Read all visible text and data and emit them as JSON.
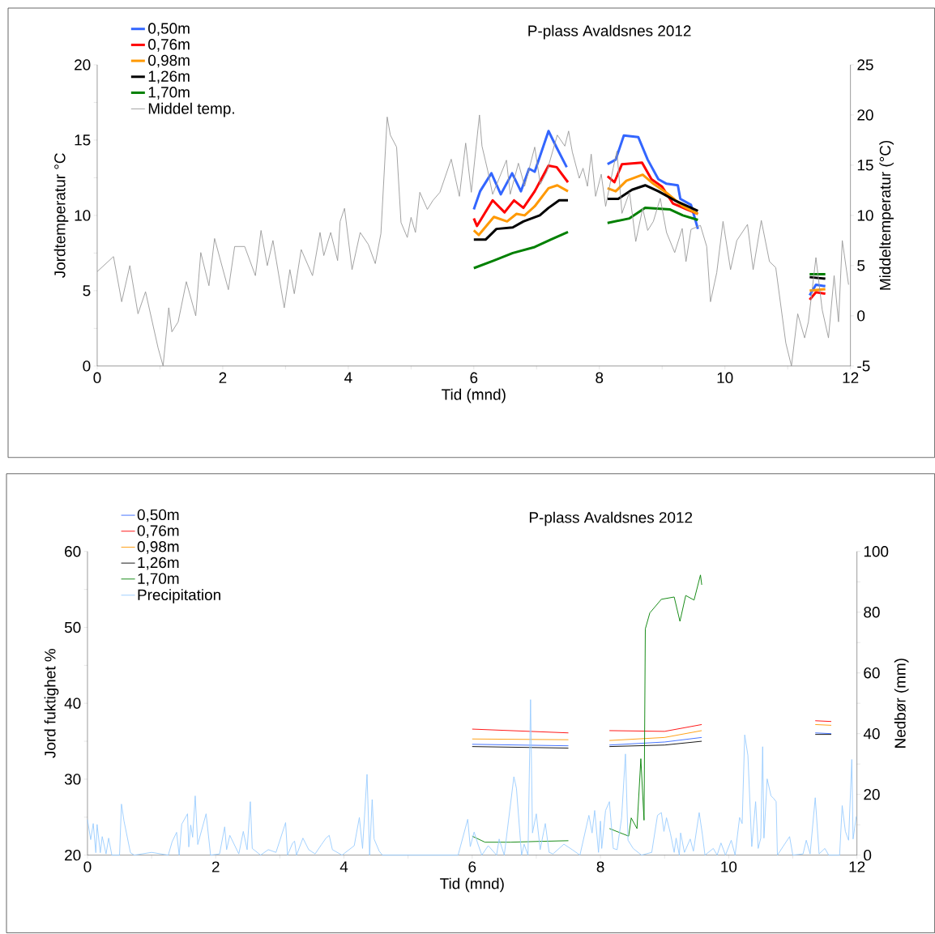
{
  "chart_data": [
    {
      "type": "line",
      "title": "P-plass Avaldsnes 2012",
      "xlabel": "Tid (mnd)",
      "ylabel": "Jordtemperatur °C",
      "y2label": "Middeltemperatur (°C)",
      "xlim": [
        0,
        12
      ],
      "xticks": [
        0,
        {
          "value": 1,
          "label": null
        },
        2,
        {
          "value": 3,
          "label": null
        },
        4,
        {
          "value": 5,
          "label": null
        },
        6,
        {
          "value": 7,
          "label": null
        },
        8,
        {
          "value": 9,
          "label": null
        },
        10,
        {
          "value": 11,
          "label": null
        },
        12
      ],
      "ylim": [
        0,
        20
      ],
      "yticks": [
        0,
        {
          "value": 2.5,
          "label": null
        },
        5,
        {
          "value": 7.5,
          "label": null
        },
        10,
        {
          "value": 12.5,
          "label": null
        },
        15,
        {
          "value": 17.5,
          "label": null
        },
        20
      ],
      "y2lim": [
        -5,
        25
      ],
      "y2ticks": [
        -5,
        0,
        5,
        10,
        15,
        20,
        25
      ],
      "legend": "top left",
      "grid": false,
      "line_style": "solid",
      "series": [
        {
          "name": "0,50m",
          "color": "#3366ff",
          "x": [
            6.0,
            6.1,
            6.28,
            6.43,
            6.61,
            6.75,
            6.88,
            6.97,
            7.19,
            7.32,
            7.48,
            7.8,
            8.13,
            8.26,
            8.39,
            8.62,
            8.77,
            8.94,
            9.07,
            9.25,
            9.29,
            9.46,
            9.57,
            10.5,
            11.35,
            11.45,
            11.6
          ],
          "values": [
            10.4,
            11.6,
            12.8,
            11.4,
            12.8,
            11.6,
            13.1,
            12.9,
            15.6,
            14.5,
            13.2,
            null,
            13.4,
            13.7,
            15.3,
            15.2,
            13.7,
            12.4,
            12.1,
            12.0,
            11.1,
            10.7,
            9.1,
            null,
            4.7,
            5.4,
            5.3
          ]
        },
        {
          "name": "0,76m",
          "color": "#ff0000",
          "x": [
            6.0,
            6.05,
            6.3,
            6.49,
            6.64,
            6.79,
            6.97,
            7.19,
            7.32,
            7.5,
            7.8,
            8.13,
            8.24,
            8.36,
            8.68,
            8.83,
            9.0,
            9.17,
            9.39,
            9.57,
            10.5,
            11.35,
            11.45,
            11.6
          ],
          "values": [
            9.8,
            9.3,
            11.0,
            10.2,
            11.0,
            10.5,
            11.6,
            13.3,
            13.2,
            12.2,
            null,
            12.6,
            12.2,
            13.4,
            13.5,
            12.4,
            11.9,
            10.8,
            10.4,
            10.1,
            null,
            4.4,
            4.9,
            4.8
          ]
        },
        {
          "name": "0,98m",
          "color": "#ff9900",
          "x": [
            6.0,
            6.08,
            6.32,
            6.53,
            6.68,
            6.81,
            6.97,
            7.19,
            7.33,
            7.5,
            7.8,
            8.13,
            8.26,
            8.43,
            8.69,
            8.86,
            9.07,
            9.33,
            9.57,
            10.5,
            11.35,
            11.6
          ],
          "values": [
            9.0,
            8.7,
            9.9,
            9.6,
            10.1,
            10.0,
            10.6,
            11.8,
            12.0,
            11.6,
            null,
            11.8,
            11.6,
            12.3,
            12.7,
            12.1,
            11.5,
            10.6,
            10.1,
            null,
            5.0,
            5.1
          ]
        },
        {
          "name": "1,26m",
          "color": "#000000",
          "x": [
            6.0,
            6.19,
            6.36,
            6.62,
            6.79,
            7.05,
            7.19,
            7.36,
            7.5,
            7.8,
            8.13,
            8.3,
            8.52,
            8.73,
            8.94,
            9.2,
            9.57,
            10.5,
            11.35,
            11.6
          ],
          "values": [
            8.4,
            8.4,
            9.1,
            9.2,
            9.6,
            10.0,
            10.5,
            11.0,
            11.0,
            null,
            11.1,
            11.1,
            11.7,
            12.0,
            11.6,
            11.0,
            10.3,
            null,
            5.9,
            5.8
          ]
        },
        {
          "name": "1,70m",
          "color": "#008000",
          "x": [
            6.0,
            6.32,
            6.62,
            6.97,
            7.23,
            7.5,
            7.8,
            8.13,
            8.48,
            8.73,
            9.12,
            9.33,
            9.57,
            10.5,
            11.35,
            11.6
          ],
          "values": [
            6.5,
            7.0,
            7.5,
            7.9,
            8.4,
            8.9,
            null,
            9.5,
            9.8,
            10.5,
            10.4,
            10.0,
            9.7,
            null,
            6.1,
            6.1
          ]
        },
        {
          "name": "Middel temp.",
          "color": "#999999",
          "axis": "y2",
          "x": [
            0,
            0.26,
            0.39,
            0.52,
            0.65,
            0.77,
            0.97,
            1.05,
            1.14,
            1.19,
            1.29,
            1.42,
            1.57,
            1.65,
            1.78,
            1.87,
            2.09,
            2.19,
            2.35,
            2.52,
            2.61,
            2.71,
            2.8,
            2.98,
            3.07,
            3.14,
            3.25,
            3.43,
            3.55,
            3.61,
            3.72,
            3.83,
            3.87,
            3.94,
            4.06,
            4.19,
            4.32,
            4.43,
            4.52,
            4.62,
            4.67,
            4.77,
            4.84,
            4.94,
            5.0,
            5.07,
            5.14,
            5.26,
            5.35,
            5.46,
            5.64,
            5.77,
            5.87,
            5.96,
            6.09,
            6.13,
            6.22,
            6.3,
            6.52,
            6.58,
            6.71,
            6.81,
            6.97,
            7.06,
            7.16,
            7.33,
            7.45,
            7.51,
            7.57,
            7.68,
            7.74,
            7.81,
            7.87,
            7.94,
            8.03,
            8.1,
            8.22,
            8.28,
            8.36,
            8.48,
            8.58,
            8.69,
            8.77,
            8.86,
            8.97,
            9.07,
            9.2,
            9.32,
            9.38,
            9.46,
            9.61,
            9.71,
            9.77,
            9.87,
            9.97,
            10.09,
            10.19,
            10.36,
            10.45,
            10.58,
            10.71,
            10.81,
            10.97,
            11.06,
            11.16,
            11.27,
            11.33,
            11.45,
            11.55,
            11.65,
            11.74,
            11.81,
            11.87,
            11.97
          ],
          "values": [
            4.4,
            5.9,
            1.4,
            5.0,
            0.2,
            2.4,
            -3.2,
            -5,
            0.8,
            -1.6,
            -0.6,
            3.4,
            0,
            6.3,
            3.0,
            7.7,
            2.6,
            6.9,
            6.9,
            4.0,
            8.5,
            5.0,
            7.5,
            0.8,
            4.6,
            2.2,
            6.6,
            4.0,
            8.3,
            6.0,
            8.3,
            5.5,
            9.4,
            10.7,
            4.6,
            8.3,
            7.1,
            5.2,
            8.2,
            19.8,
            18.0,
            16.8,
            9.3,
            7.8,
            9.8,
            8.3,
            12.3,
            10.6,
            11.5,
            12.3,
            15.6,
            11.9,
            17.2,
            12.3,
            20.0,
            16.9,
            14.5,
            12.1,
            15.5,
            12.1,
            15.2,
            12.9,
            16.8,
            13.1,
            14.3,
            18.0,
            16.9,
            18.4,
            16.3,
            13.7,
            14.7,
            12.9,
            16.1,
            11.9,
            14.1,
            10.9,
            14.7,
            16.4,
            10.2,
            12.3,
            7.4,
            10.7,
            8.5,
            9.4,
            11.7,
            8.3,
            6.3,
            8.7,
            5.4,
            8.6,
            9.0,
            6.9,
            1.4,
            4.3,
            9.4,
            4.6,
            7.5,
            9.1,
            4.6,
            9.5,
            5.4,
            4.8,
            -2.7,
            -5,
            0.2,
            -2.2,
            -0.6,
            5.8,
            0.6,
            -2.2,
            4.0,
            -0.6,
            7.5,
            3.1
          ]
        }
      ]
    },
    {
      "type": "line",
      "title": "P-plass Avaldsnes 2012",
      "xlabel": "Tid (mnd)",
      "ylabel": "Jord fuktighet %",
      "y2label": "Nedbør (mm)",
      "xlim": [
        0,
        12
      ],
      "xticks": [
        0,
        {
          "value": 1,
          "label": null
        },
        2,
        {
          "value": 3,
          "label": null
        },
        4,
        {
          "value": 5,
          "label": null
        },
        6,
        {
          "value": 7,
          "label": null
        },
        8,
        {
          "value": 9,
          "label": null
        },
        10,
        {
          "value": 11,
          "label": null
        },
        12
      ],
      "ylim": [
        20,
        60
      ],
      "yticks": [
        20,
        {
          "value": 25,
          "label": null
        },
        30,
        {
          "value": 35,
          "label": null
        },
        40,
        {
          "value": 45,
          "label": null
        },
        50,
        {
          "value": 55,
          "label": null
        },
        60
      ],
      "y2lim": [
        0,
        100
      ],
      "y2ticks": [
        0,
        {
          "value": 10,
          "label": null
        },
        20,
        {
          "value": 30,
          "label": null
        },
        40,
        {
          "value": 50,
          "label": null
        },
        60,
        {
          "value": 70,
          "label": null
        },
        80,
        {
          "value": 90,
          "label": null
        },
        100
      ],
      "legend": "top left",
      "grid": false,
      "line_style": "solid",
      "series": [
        {
          "name": "0,50m",
          "color": "#3366ff",
          "x": [
            6.0,
            7.5,
            7.8,
            8.14,
            9.0,
            9.58,
            10.5,
            11.35,
            11.6
          ],
          "values": [
            34.6,
            34.4,
            null,
            34.5,
            34.9,
            35.5,
            null,
            36.1,
            36.0
          ]
        },
        {
          "name": "0,76m",
          "color": "#ff0000",
          "x": [
            6.0,
            7.5,
            7.8,
            8.14,
            9.0,
            9.58,
            10.5,
            11.35,
            11.6
          ],
          "values": [
            36.6,
            36.1,
            null,
            36.4,
            36.3,
            37.2,
            null,
            37.7,
            37.6
          ]
        },
        {
          "name": "0,98m",
          "color": "#ff9900",
          "x": [
            6.0,
            7.5,
            7.8,
            8.14,
            9.0,
            9.58,
            10.5,
            11.35,
            11.6
          ],
          "values": [
            35.3,
            35.2,
            null,
            35.1,
            35.5,
            36.4,
            null,
            37.2,
            37.1
          ]
        },
        {
          "name": "1,26m",
          "color": "#000000",
          "x": [
            6.0,
            7.5,
            7.8,
            8.14,
            9.0,
            9.58,
            10.5,
            11.35,
            11.6
          ],
          "values": [
            34.3,
            34.1,
            null,
            34.3,
            34.5,
            35.0,
            null,
            35.9,
            35.9
          ]
        },
        {
          "name": "1,70m",
          "color": "#008000",
          "x": [
            6.0,
            6.2,
            6.6,
            7.0,
            7.5,
            7.8,
            8.14,
            8.44,
            8.48,
            8.57,
            8.63,
            8.68,
            8.7,
            8.77,
            8.95,
            9.15,
            9.24,
            9.33,
            9.46,
            9.56,
            9.58
          ],
          "values": [
            22.5,
            21.7,
            21.7,
            21.8,
            21.9,
            null,
            23.5,
            22.5,
            24.9,
            23.5,
            32.7,
            24.6,
            49.8,
            51.9,
            53.7,
            54.0,
            50.8,
            54.2,
            53.6,
            56.9,
            55.6
          ]
        },
        {
          "name": "Precipitation",
          "color": "#99ccff",
          "axis": "y2",
          "x": [
            0,
            0.05,
            0.09,
            0.13,
            0.15,
            0.2,
            0.23,
            0.29,
            0.33,
            0.38,
            0.5,
            0.53,
            0.57,
            0.67,
            0.73,
            1.0,
            1.26,
            1.32,
            1.39,
            1.43,
            1.47,
            1.56,
            1.58,
            1.61,
            1.64,
            1.68,
            1.72,
            1.85,
            1.92,
            2.06,
            2.14,
            2.17,
            2.22,
            2.36,
            2.43,
            2.49,
            2.54,
            2.57,
            2.7,
            2.82,
            2.94,
            3.09,
            3.12,
            3.2,
            3.23,
            3.26,
            3.36,
            3.45,
            3.55,
            3.65,
            3.72,
            3.77,
            3.82,
            3.97,
            4.16,
            4.24,
            4.29,
            4.36,
            4.4,
            4.44,
            4.47,
            4.55,
            4.6,
            5.78,
            5.93,
            5.97,
            6.03,
            6.09,
            6.15,
            6.25,
            6.38,
            6.42,
            6.5,
            6.65,
            6.69,
            6.77,
            6.81,
            6.87,
            6.91,
            6.94,
            7.0,
            7.06,
            7.14,
            7.2,
            7.26,
            7.43,
            7.56,
            7.68,
            7.82,
            7.87,
            7.91,
            7.97,
            8.0,
            8.02,
            8.08,
            8.14,
            8.2,
            8.26,
            8.33,
            8.39,
            8.43,
            8.51,
            8.64,
            8.8,
            8.89,
            8.95,
            8.99,
            9.03,
            9.09,
            9.15,
            9.18,
            9.23,
            9.25,
            9.31,
            9.4,
            9.45,
            9.54,
            9.59,
            9.63,
            9.76,
            9.82,
            9.88,
            9.95,
            10.04,
            10.1,
            10.17,
            10.21,
            10.25,
            10.3,
            10.36,
            10.42,
            10.46,
            10.5,
            10.53,
            10.55,
            10.6,
            10.66,
            10.7,
            10.74,
            10.76,
            10.95,
            11.0,
            11.16,
            11.21,
            11.27,
            11.35,
            11.41,
            11.5,
            11.56,
            11.73,
            11.77,
            11.82,
            11.87,
            11.92,
            11.94,
            11.99
          ],
          "values": [
            11.7,
            5.1,
            10.4,
            0.8,
            10.1,
            0.8,
            6.1,
            0.4,
            5.6,
            0,
            0,
            16.8,
            11.2,
            0.8,
            0,
            0.9,
            0,
            4.4,
            7.5,
            0,
            10.2,
            13.6,
            2.7,
            9.9,
            5.9,
            19.5,
            3.5,
            13.6,
            0,
            0.4,
            9.3,
            1.8,
            6.5,
            0.4,
            7.8,
            1.8,
            17.6,
            2.2,
            0,
            1.8,
            0.9,
            10.7,
            0,
            4.0,
            4.6,
            0,
            5.6,
            1.8,
            0.4,
            3.5,
            5.6,
            6.5,
            1.8,
            0,
            3.1,
            12.4,
            2.2,
            26.6,
            0,
            18.3,
            5.3,
            1.3,
            0,
            0,
            11.8,
            2.8,
            7.6,
            3.6,
            0,
            3.1,
            0,
            5.3,
            0,
            25.8,
            22.0,
            0,
            3.6,
            0,
            51.2,
            7.3,
            13.6,
            1.8,
            10.4,
            0.9,
            0.4,
            3.6,
            1.8,
            0,
            13.1,
            7.3,
            14.7,
            0.9,
            11.2,
            2.2,
            14.7,
            17.6,
            2.2,
            1.8,
            12.3,
            33.3,
            4.9,
            2.2,
            0,
            0.9,
            13.1,
            14.0,
            7.8,
            12.3,
            7.3,
            0.9,
            5.6,
            0,
            7.3,
            0.9,
            5.3,
            1.3,
            14.0,
            6.8,
            0,
            2.2,
            0,
            4.0,
            0,
            4.9,
            0,
            12.4,
            10.4,
            39.6,
            32.8,
            2.8,
            17.6,
            2.2,
            5.6,
            35.7,
            5.6,
            25.1,
            19.5,
            18.7,
            17.6,
            0,
            6.1,
            0,
            0.4,
            4.9,
            0.4,
            18.9,
            0.4,
            2.2,
            0,
            0,
            16.3,
            7.8,
            4.9,
            31.5,
            5.3,
            12.8
          ]
        }
      ]
    }
  ]
}
